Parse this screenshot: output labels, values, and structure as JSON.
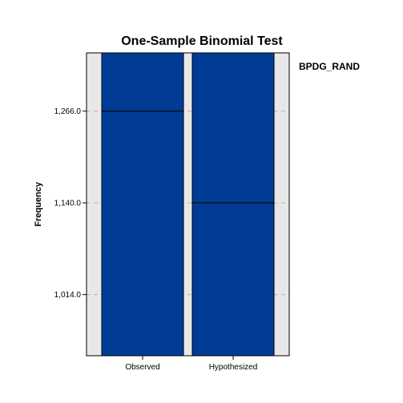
{
  "chart_data": {
    "type": "bar",
    "title": "One-Sample Binomial Test",
    "ylabel": "Frequency",
    "xlabel": "",
    "legend_label": "BPDG_RAND",
    "categories": [
      "Observed",
      "Hypothesized"
    ],
    "reference_lines": [
      1266.0,
      1140.0
    ],
    "yticks": [
      {
        "value": 1014.0,
        "label": "1,014.0"
      },
      {
        "value": 1140.0,
        "label": "1,140.0"
      },
      {
        "value": 1266.0,
        "label": "1,266.0"
      }
    ],
    "ylim": [
      930,
      1346
    ],
    "grid": "dashed horizontal",
    "colors": {
      "bar": "#003c96",
      "background": "#e8e8e8",
      "reference": "#000000",
      "grid": "#b4b4b4"
    }
  }
}
